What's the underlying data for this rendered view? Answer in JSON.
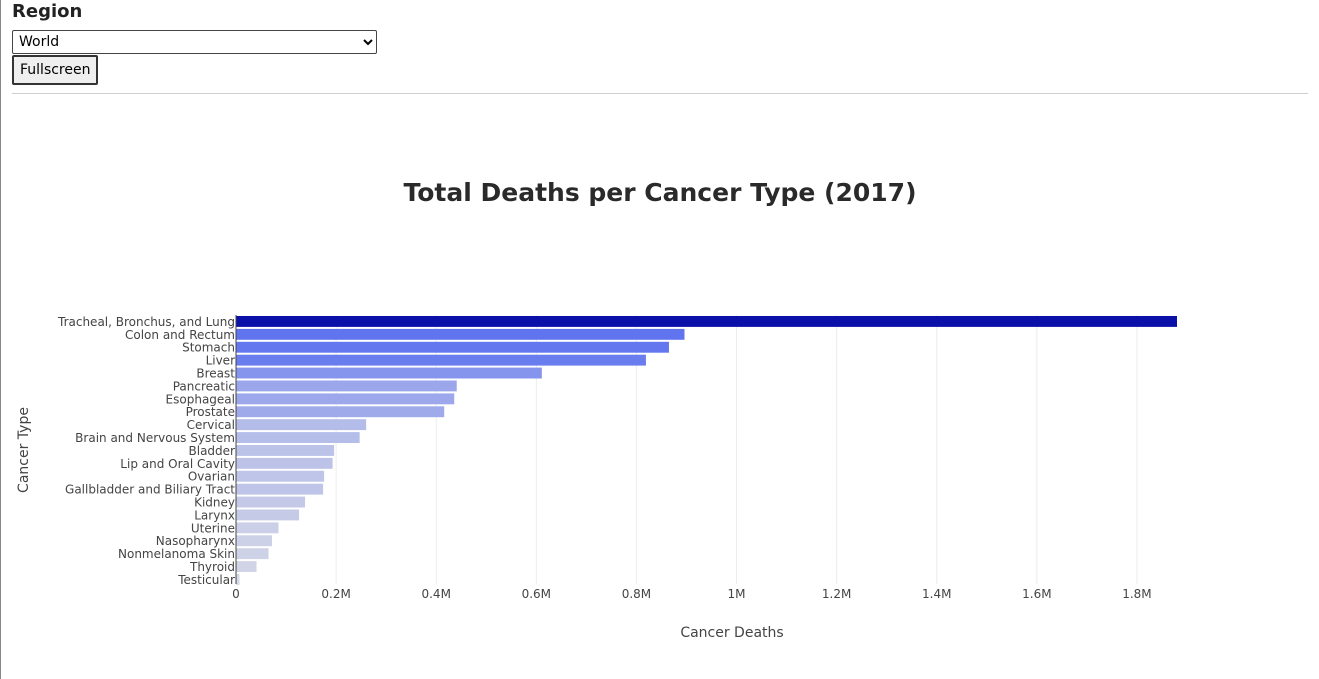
{
  "controls": {
    "region_label": "Region",
    "region_selected": "World",
    "fullscreen_label": "Fullscreen"
  },
  "chart_data": {
    "type": "bar",
    "orientation": "horizontal",
    "title": "Total Deaths per Cancer Type (2017)",
    "xlabel": "Cancer Deaths",
    "ylabel": "Cancer Type",
    "xlim": [
      0,
      1900000
    ],
    "x_ticks": [
      0,
      200000,
      400000,
      600000,
      800000,
      1000000,
      1200000,
      1400000,
      1600000,
      1800000
    ],
    "x_tick_labels": [
      "0",
      "0.2M",
      "0.4M",
      "0.6M",
      "0.8M",
      "1M",
      "1.2M",
      "1.4M",
      "1.6M",
      "1.8M"
    ],
    "grid": "vertical",
    "color_scale": {
      "low": "#d6d9e6",
      "mid": "#5a6ff0",
      "high": "#0a10a8"
    },
    "categories": [
      "Tracheal, Bronchus, and Lung",
      "Colon and Rectum",
      "Stomach",
      "Liver",
      "Breast",
      "Pancreatic",
      "Esophageal",
      "Prostate",
      "Cervical",
      "Brain and Nervous System",
      "Bladder",
      "Lip and Oral Cavity",
      "Ovarian",
      "Gallbladder and Biliary Tract",
      "Kidney",
      "Larynx",
      "Uterine",
      "Nasopharynx",
      "Nonmelanoma Skin",
      "Thyroid",
      "Testicular"
    ],
    "values": [
      1880000,
      896000,
      865000,
      819000,
      611000,
      441000,
      436000,
      416000,
      260000,
      247000,
      196000,
      193000,
      176000,
      174000,
      138000,
      126000,
      85000,
      72000,
      65000,
      41000,
      7000
    ]
  }
}
